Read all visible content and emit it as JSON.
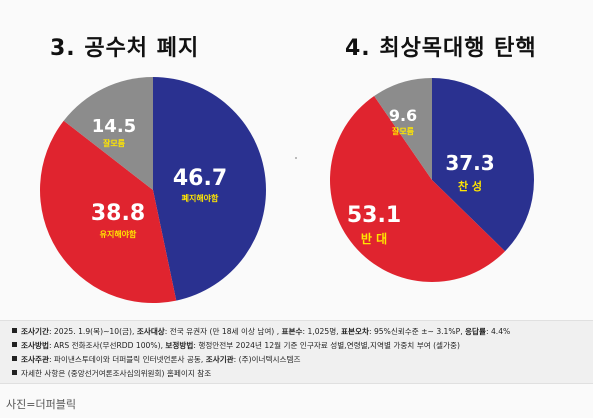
{
  "chart_data": [
    {
      "type": "pie",
      "title": "3. 공수처 폐지",
      "slices": [
        {
          "name": "폐지해야함",
          "value": 46.7,
          "label": "46.7",
          "color": "#2a3190"
        },
        {
          "name": "유지해야함",
          "value": 38.8,
          "label": "38.8",
          "color": "#e0242f"
        },
        {
          "name": "잘모름",
          "value": 14.5,
          "label": "14.5",
          "color": "#8c8c8c"
        }
      ]
    },
    {
      "type": "pie",
      "title": "4. 최상목대행 탄핵",
      "slices": [
        {
          "name": "찬 성",
          "value": 37.3,
          "label": "37.3",
          "color": "#2a3190"
        },
        {
          "name": "반 대",
          "value": 53.1,
          "label": "53.1",
          "color": "#e0242f"
        },
        {
          "name": "잘모름",
          "value": 9.6,
          "label": "9.6",
          "color": "#8c8c8c"
        }
      ]
    }
  ],
  "notes": [
    {
      "parts": [
        [
          "b",
          "조사기간"
        ],
        [
          "t",
          ": 2025. 1.9(목)~10(금), "
        ],
        [
          "b",
          "조사대상"
        ],
        [
          "t",
          ": 전국 유권자 (만 18세 이상 남여) , "
        ],
        [
          "b",
          "표본수"
        ],
        [
          "t",
          ": 1,025명, "
        ],
        [
          "b",
          "표본오차"
        ],
        [
          "t",
          ": 95%신뢰수준 ±~ 3.1%P, "
        ],
        [
          "b",
          "응답률"
        ],
        [
          "t",
          ": 4.4%"
        ]
      ]
    },
    {
      "parts": [
        [
          "b",
          "조사방법"
        ],
        [
          "t",
          ": ARS 전화조사(무선RDD 100%),  "
        ],
        [
          "b",
          "보정방법"
        ],
        [
          "t",
          ": 행정안전부 2024년 12월 기준 인구자료 성별,연령별,지역별 가중치 부여 (셀가중)"
        ]
      ]
    },
    {
      "parts": [
        [
          "b",
          "조사주관"
        ],
        [
          "t",
          ":  파이낸스투데이와 더퍼블릭 인터넷언론사 공동, "
        ],
        [
          "b",
          "조사기관"
        ],
        [
          "t",
          ": (주)이너텍시스템즈"
        ]
      ]
    },
    {
      "parts": [
        [
          "t",
          "자세한 사항은 (중앙선거여론조사심의위원회) 홈페이지 참조"
        ]
      ]
    }
  ],
  "photo_credit": "사진=더퍼블릭"
}
